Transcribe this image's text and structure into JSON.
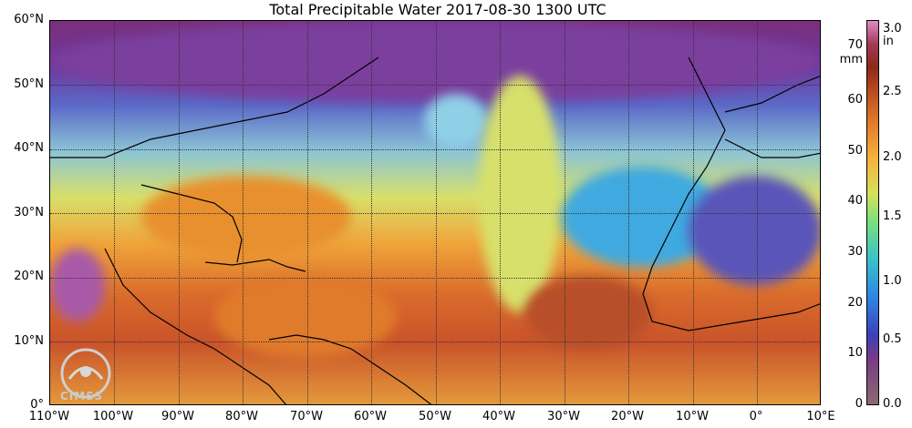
{
  "title": "Total Precipitable Water  2017-08-30 1300 UTC",
  "axes": {
    "lat_labels": [
      "60°N",
      "50°N",
      "40°N",
      "30°N",
      "20°N",
      "10°N",
      "0°"
    ],
    "lon_labels": [
      "110°W",
      "100°W",
      "90°W",
      "80°W",
      "70°W",
      "60°W",
      "50°W",
      "40°W",
      "30°W",
      "20°W",
      "10°W",
      "0°",
      "10°E"
    ],
    "lat_range": [
      0,
      60
    ],
    "lon_range": [
      -110,
      10
    ],
    "grid": "dotted"
  },
  "colorbar": {
    "mm_label": "mm",
    "in_label": "in",
    "mm_ticks": [
      "0",
      "10",
      "20",
      "30",
      "40",
      "50",
      "60",
      "70"
    ],
    "in_ticks": [
      "0.0",
      "0.5",
      "1.0",
      "1.5",
      "2.0",
      "2.5",
      "3.0"
    ],
    "mm_range": [
      0,
      76
    ]
  },
  "logo": {
    "text": "CIMSS"
  },
  "colors": {
    "dry": "#7a2f7c",
    "moist_low": "#2f7fe3",
    "moist_mid": "#7fe07a",
    "moist_high": "#e0782a",
    "very_moist": "#8b2a1a"
  }
}
